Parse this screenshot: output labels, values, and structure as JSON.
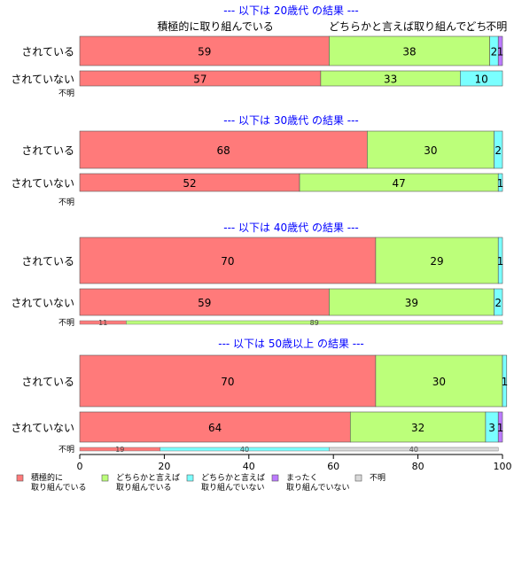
{
  "chart_data": {
    "type": "bar",
    "orientation": "horizontal",
    "stacked": true,
    "x_axis": {
      "xlim": [
        0,
        100
      ],
      "ticks": [
        "0",
        "20",
        "40",
        "60",
        "80",
        "100"
      ]
    },
    "grid": false,
    "legend_position": "bottom",
    "categories": [
      {
        "label": "積極的に\n取り組んでいる",
        "color": "#ff7a7a"
      },
      {
        "label": "どちらかと言えば\n取り組んでいる",
        "color": "#bcff7a"
      },
      {
        "label": "どちらかと言えば\n取り組んでいない",
        "color": "#7affff"
      },
      {
        "label": "まったく\n取り組んでいない",
        "color": "#bc7aff"
      },
      {
        "label": "不明",
        "color": "#d9d9d9"
      }
    ],
    "top_labels": [
      {
        "text": "積極的に取り組んでいる",
        "x": 30
      },
      {
        "text": "どちらかと言えば取り組んで..",
        "x": 76
      },
      {
        "text": "どち..",
        "x": 100
      },
      {
        "text": "不明",
        "x": 99
      }
    ],
    "panels": [
      {
        "title": "--- 以下は 20歳代 の結果 ---",
        "bars": [
          {
            "label": "されている",
            "values": [
              59,
              38,
              2,
              1,
              0
            ],
            "value_labels": [
              "59",
              "38",
              "2",
              "1",
              ""
            ]
          },
          {
            "label": "されていない",
            "values": [
              57,
              33,
              10,
              0,
              0
            ],
            "value_labels": [
              "57",
              "33",
              "10",
              "",
              ""
            ]
          }
        ],
        "unknown": {
          "label": "不明",
          "values": [],
          "value_labels": []
        }
      },
      {
        "title": "--- 以下は 30歳代 の結果 ---",
        "bars": [
          {
            "label": "されている",
            "values": [
              68,
              30,
              2,
              0,
              0
            ],
            "value_labels": [
              "68",
              "30",
              "2",
              "",
              ""
            ]
          },
          {
            "label": "されていない",
            "values": [
              52,
              47,
              1,
              0,
              0
            ],
            "value_labels": [
              "52",
              "47",
              "1",
              "",
              ""
            ]
          }
        ],
        "unknown": {
          "label": "不明",
          "values": [],
          "value_labels": []
        }
      },
      {
        "title": "--- 以下は 40歳代 の結果 ---",
        "bars": [
          {
            "label": "されている",
            "values": [
              70,
              29,
              1,
              0,
              0
            ],
            "value_labels": [
              "70",
              "29",
              "1",
              "",
              ""
            ]
          },
          {
            "label": "されていない",
            "values": [
              59,
              39,
              2,
              0,
              0
            ],
            "value_labels": [
              "59",
              "39",
              "2",
              "",
              ""
            ]
          }
        ],
        "unknown": {
          "label": "不明",
          "values": [
            11,
            89,
            0,
            0,
            0
          ],
          "value_labels": [
            "11",
            "89",
            "",
            "",
            ""
          ]
        }
      },
      {
        "title": "--- 以下は 50歳以上 の結果 ---",
        "bars": [
          {
            "label": "されている",
            "values": [
              70,
              30,
              1,
              0,
              0
            ],
            "value_labels": [
              "70",
              "30",
              "1",
              "",
              ""
            ]
          },
          {
            "label": "されていない",
            "values": [
              64,
              32,
              3,
              1,
              0
            ],
            "value_labels": [
              "64",
              "32",
              "3",
              "1",
              ""
            ]
          }
        ],
        "unknown": {
          "label": "不明",
          "values": [
            19,
            0,
            40,
            0,
            40
          ],
          "value_labels": [
            "19",
            "",
            "40",
            "",
            "40"
          ]
        }
      }
    ]
  }
}
